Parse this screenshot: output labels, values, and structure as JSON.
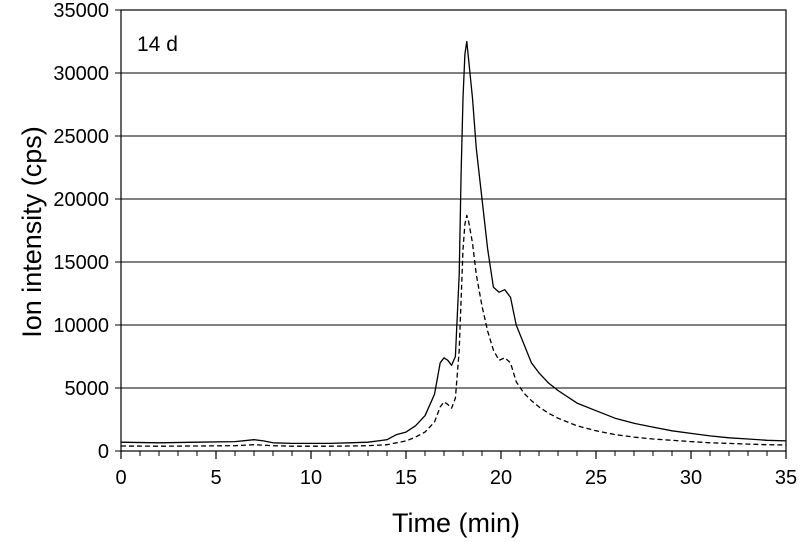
{
  "chart_data": {
    "type": "line",
    "title": "",
    "xlabel": "Time (min)",
    "ylabel": "Ion intensity (cps)",
    "annotation": "14 d",
    "xlim": [
      0,
      35
    ],
    "ylim": [
      0,
      35000
    ],
    "x_ticks": [
      "0",
      "5",
      "10",
      "15",
      "20",
      "25",
      "30",
      "35"
    ],
    "y_ticks": [
      "0",
      "5000",
      "10000",
      "15000",
      "20000",
      "25000",
      "30000",
      "35000"
    ],
    "grid": "horizontal",
    "legend": "none",
    "line_color": "#000000",
    "series": [
      {
        "style": "solid",
        "x": [
          0,
          2,
          4,
          6,
          7,
          7.5,
          8,
          9,
          10,
          11,
          12,
          13,
          14,
          14.5,
          15,
          15.5,
          16,
          16.5,
          16.8,
          17.0,
          17.2,
          17.4,
          17.6,
          17.8,
          17.9,
          18.0,
          18.1,
          18.2,
          18.3,
          18.5,
          18.7,
          19.0,
          19.3,
          19.6,
          19.9,
          20.2,
          20.5,
          20.8,
          21.2,
          21.6,
          22,
          22.5,
          23,
          24,
          25,
          26,
          27,
          28,
          29,
          30,
          31,
          32,
          33,
          34,
          35
        ],
        "y": [
          700,
          650,
          700,
          750,
          900,
          800,
          650,
          600,
          600,
          600,
          650,
          700,
          900,
          1300,
          1500,
          2000,
          2800,
          4500,
          7000,
          7400,
          7200,
          6800,
          7500,
          14000,
          22000,
          28000,
          31500,
          32500,
          31000,
          28000,
          24000,
          20000,
          16000,
          13000,
          12600,
          12800,
          12200,
          10000,
          8500,
          7000,
          6200,
          5400,
          4800,
          3800,
          3200,
          2600,
          2200,
          1900,
          1600,
          1400,
          1200,
          1050,
          950,
          850,
          800
        ]
      },
      {
        "style": "dashed",
        "x": [
          0,
          2,
          4,
          6,
          7,
          8,
          9,
          10,
          11,
          12,
          13,
          14,
          15,
          15.5,
          16,
          16.5,
          16.8,
          17.0,
          17.2,
          17.4,
          17.6,
          17.8,
          17.9,
          18.0,
          18.1,
          18.2,
          18.3,
          18.5,
          18.7,
          19.0,
          19.3,
          19.6,
          19.9,
          20.2,
          20.5,
          20.8,
          21.2,
          21.6,
          22,
          22.5,
          23,
          24,
          25,
          26,
          27,
          28,
          29,
          30,
          31,
          32,
          33,
          34,
          35
        ],
        "y": [
          400,
          380,
          400,
          420,
          500,
          420,
          380,
          380,
          380,
          400,
          420,
          500,
          800,
          1100,
          1500,
          2300,
          3500,
          3900,
          3700,
          3400,
          4200,
          8000,
          12000,
          16000,
          18000,
          18700,
          18200,
          16500,
          14000,
          11500,
          9500,
          8000,
          7200,
          7400,
          7000,
          5500,
          4600,
          4000,
          3500,
          3000,
          2600,
          2000,
          1600,
          1300,
          1100,
          950,
          850,
          750,
          650,
          600,
          550,
          500,
          480
        ]
      }
    ]
  }
}
